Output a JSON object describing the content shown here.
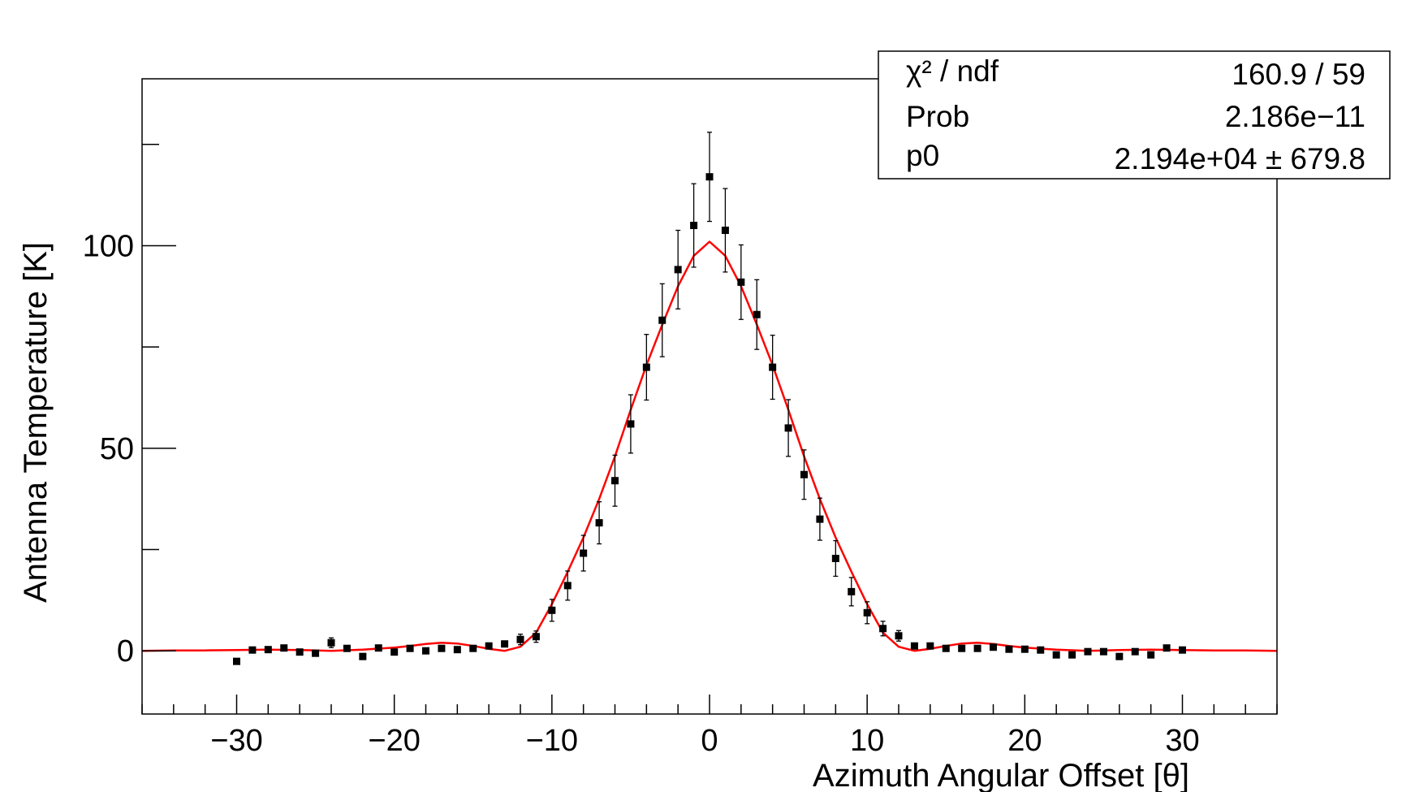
{
  "chart_data": {
    "type": "scatter",
    "xlabel": "Azimuth Angular Offset [θ]",
    "ylabel": "Antenna Temperature [K]",
    "xlim": [
      -36,
      36
    ],
    "ylim": [
      -15.6,
      141.2
    ],
    "x_ticks": [
      -30,
      -20,
      -10,
      0,
      10,
      20,
      30
    ],
    "x_tick_labels": [
      "−30",
      "−20",
      "−10",
      "0",
      "10",
      "20",
      "30"
    ],
    "y_ticks": [
      0,
      50,
      100
    ],
    "y_tick_labels": [
      "0",
      "50",
      "100"
    ],
    "grid": false,
    "colors": {
      "data": "#000000",
      "fit": "#ff0000"
    },
    "stats_box": {
      "placement": "top-right",
      "rows": [
        {
          "label": "χ² / ndf",
          "value": "160.9 / 59"
        },
        {
          "label": "Prob",
          "value": "2.186e−11"
        },
        {
          "label": "p0",
          "value": "2.194e+04 ± 679.8"
        }
      ]
    },
    "series": [
      {
        "style": "points-with-errors",
        "x": [
          -30,
          -29,
          -28,
          -27,
          -26,
          -25,
          -24,
          -23,
          -22,
          -21,
          -20,
          -19,
          -18,
          -17,
          -16,
          -15,
          -14,
          -13,
          -12,
          -11,
          -10,
          -9,
          -8,
          -7,
          -6,
          -5,
          -4,
          -3,
          -2,
          -1,
          0,
          1,
          2,
          3,
          4,
          5,
          6,
          7,
          8,
          9,
          10,
          11,
          12,
          13,
          14,
          15,
          16,
          17,
          18,
          19,
          20,
          21,
          22,
          23,
          24,
          25,
          26,
          27,
          28,
          29,
          30
        ],
        "y": [
          -2.6,
          0.2,
          0.3,
          0.7,
          -0.3,
          -0.6,
          2.0,
          0.6,
          -1.4,
          0.7,
          -0.3,
          0.6,
          0.0,
          0.6,
          0.3,
          0.6,
          1.2,
          1.7,
          2.8,
          3.5,
          10.0,
          16.1,
          24.1,
          31.6,
          42.0,
          56.0,
          70.0,
          81.6,
          94.1,
          105.0,
          117.0,
          103.8,
          91.0,
          83.0,
          70.0,
          55.0,
          43.5,
          32.5,
          22.8,
          14.6,
          9.4,
          5.5,
          3.7,
          1.2,
          1.2,
          0.6,
          0.6,
          0.6,
          0.9,
          0.4,
          0.4,
          0.2,
          -1.0,
          -1.0,
          -0.2,
          -0.2,
          -1.4,
          -0.2,
          -1.0,
          0.7,
          0.2
        ],
        "yerr": [
          0.3,
          0.3,
          0.3,
          0.3,
          0.3,
          0.3,
          1.2,
          0.3,
          0.3,
          0.3,
          0.3,
          0.3,
          0.3,
          0.3,
          0.3,
          0.3,
          0.8,
          1.0,
          1.3,
          1.4,
          2.7,
          3.6,
          4.4,
          5.2,
          6.3,
          7.2,
          8.1,
          9.0,
          9.7,
          10.3,
          11.0,
          10.3,
          9.2,
          8.6,
          7.9,
          7.0,
          6.1,
          5.2,
          4.4,
          3.5,
          2.7,
          1.8,
          1.3,
          0.6,
          0.5,
          0.5,
          0.5,
          0.5,
          0.5,
          0.3,
          0.3,
          0.3,
          0.3,
          0.3,
          0.3,
          0.3,
          0.3,
          0.3,
          0.3,
          0.3,
          0.3
        ]
      },
      {
        "style": "line",
        "x": [
          -36,
          -34,
          -32,
          -30,
          -28,
          -26,
          -24,
          -22,
          -20,
          -19,
          -18,
          -17,
          -16,
          -15,
          -14,
          -13,
          -12,
          -11,
          -10,
          -9,
          -8,
          -7,
          -6,
          -5,
          -4,
          -3,
          -2,
          -1,
          0,
          1,
          2,
          3,
          4,
          5,
          6,
          7,
          8,
          9,
          10,
          11,
          12,
          13,
          14,
          15,
          16,
          17,
          18,
          19,
          20,
          22,
          24,
          26,
          28,
          30,
          32,
          34,
          36
        ],
        "y": [
          0.0,
          0.1,
          0.1,
          0.2,
          0.3,
          0.2,
          0.0,
          0.3,
          0.8,
          1.2,
          1.7,
          2.0,
          1.8,
          1.2,
          0.5,
          0.0,
          1.0,
          4.5,
          11.5,
          19.5,
          28.0,
          37.5,
          48.0,
          59.5,
          70.5,
          80.5,
          90.0,
          97.5,
          101.0,
          97.5,
          90.0,
          80.5,
          70.5,
          59.5,
          48.0,
          37.5,
          28.0,
          19.5,
          11.5,
          4.5,
          1.0,
          0.0,
          0.5,
          1.2,
          1.8,
          2.0,
          1.7,
          1.2,
          0.8,
          0.3,
          0.0,
          0.2,
          0.3,
          0.2,
          0.1,
          0.1,
          0.0
        ]
      }
    ]
  }
}
